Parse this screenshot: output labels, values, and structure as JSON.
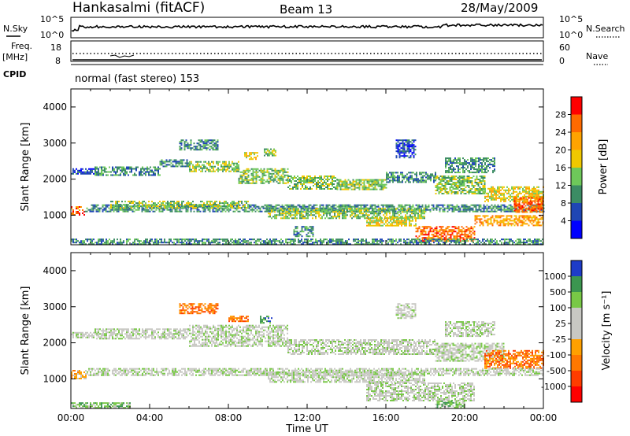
{
  "header": {
    "station": "Hankasalmi (fitACF)",
    "beam": "Beam 13",
    "date": "28/May/2009"
  },
  "noise_panel": {
    "left_label": "N.Sky",
    "right_label": "N.Search",
    "left_ticks": [
      "10^5",
      "10^0"
    ],
    "right_ticks": [
      "10^5",
      "10^0"
    ]
  },
  "freq_panel": {
    "left_label_line1": "Freq.",
    "left_label_line2": "[MHz]",
    "right_label": "Nave",
    "left_ticks": [
      "18",
      "8"
    ],
    "right_ticks": [
      "60",
      "0"
    ]
  },
  "cpid": {
    "label": "CPID",
    "mode": "normal (fast stereo) 153"
  },
  "chart_data": [
    {
      "type": "heatmap",
      "name": "power",
      "ylabel": "Slant Range [km]",
      "yticks": [
        "4000",
        "3000",
        "2000",
        "1000"
      ],
      "ylim": [
        180,
        4500
      ],
      "xlim": [
        0,
        24
      ],
      "colorbar_label": "Power [dB]",
      "colorbar_ticks": [
        "28",
        "24",
        "20",
        "16",
        "12",
        "8",
        "4"
      ],
      "colorbar_colors": [
        "#ff0000",
        "#ff6a00",
        "#ffa300",
        "#f0c800",
        "#6ec85a",
        "#3c8c64",
        "#1f46b4",
        "#0000ff"
      ],
      "bands": [
        {
          "t": [
            0.0,
            1.2
          ],
          "r": [
            2150,
            2300
          ],
          "level": 1
        },
        {
          "t": [
            1.2,
            4.5
          ],
          "r": [
            2100,
            2350
          ],
          "level": 2
        },
        {
          "t": [
            4.5,
            6.0
          ],
          "r": [
            2350,
            2550
          ],
          "level": 2
        },
        {
          "t": [
            6.0,
            8.5
          ],
          "r": [
            2200,
            2500
          ],
          "level": 3
        },
        {
          "t": [
            8.5,
            11.0
          ],
          "r": [
            1900,
            2300
          ],
          "level": 3
        },
        {
          "t": [
            11.0,
            13.5
          ],
          "r": [
            1750,
            2100
          ],
          "level": 3
        },
        {
          "t": [
            13.5,
            16.0
          ],
          "r": [
            1700,
            2000
          ],
          "level": 3
        },
        {
          "t": [
            16.0,
            18.5
          ],
          "r": [
            1900,
            2200
          ],
          "level": 2
        },
        {
          "t": [
            18.5,
            21.0
          ],
          "r": [
            1600,
            2100
          ],
          "level": 3
        },
        {
          "t": [
            21.0,
            24.0
          ],
          "r": [
            1400,
            1800
          ],
          "level": 4
        },
        {
          "t": [
            0.0,
            0.7
          ],
          "r": [
            1000,
            1250
          ],
          "level": 6
        },
        {
          "t": [
            0.7,
            24.0
          ],
          "r": [
            1100,
            1300
          ],
          "level": 2
        },
        {
          "t": [
            2.0,
            9.0
          ],
          "r": [
            1200,
            1400
          ],
          "level": 3
        },
        {
          "t": [
            10.0,
            18.0
          ],
          "r": [
            900,
            1200
          ],
          "level": 3
        },
        {
          "t": [
            15.0,
            17.5
          ],
          "r": [
            700,
            950
          ],
          "level": 4
        },
        {
          "t": [
            17.5,
            20.5
          ],
          "r": [
            300,
            700
          ],
          "level": 6
        },
        {
          "t": [
            20.5,
            24.0
          ],
          "r": [
            700,
            1000
          ],
          "level": 5
        },
        {
          "t": [
            22.5,
            24.0
          ],
          "r": [
            1100,
            1500
          ],
          "level": 6
        },
        {
          "t": [
            0.0,
            24.0
          ],
          "r": [
            190,
            350
          ],
          "level": 2
        },
        {
          "t": [
            11.3,
            12.3
          ],
          "r": [
            400,
            700
          ],
          "level": 2
        },
        {
          "t": [
            5.5,
            7.5
          ],
          "r": [
            2800,
            3100
          ],
          "level": 2
        },
        {
          "t": [
            8.8,
            9.5
          ],
          "r": [
            2550,
            2750
          ],
          "level": 4
        },
        {
          "t": [
            9.8,
            10.4
          ],
          "r": [
            2650,
            2850
          ],
          "level": 3
        },
        {
          "t": [
            16.5,
            17.5
          ],
          "r": [
            2600,
            3100
          ],
          "level": 1
        },
        {
          "t": [
            19.0,
            21.5
          ],
          "r": [
            2200,
            2600
          ],
          "level": 2
        }
      ]
    },
    {
      "type": "heatmap",
      "name": "velocity",
      "ylabel": "Slant Range [km]",
      "yticks": [
        "4000",
        "3000",
        "2000",
        "1000"
      ],
      "ylim": [
        180,
        4500
      ],
      "xlabel": "Time UT",
      "xticks": [
        "00:00",
        "04:00",
        "08:00",
        "12:00",
        "16:00",
        "20:00",
        "00:00"
      ],
      "xlim": [
        0,
        24
      ],
      "colorbar_label": "Velocity [m s⁻¹]",
      "colorbar_ticks": [
        "1000",
        "500",
        "100",
        "25",
        "-25",
        "-100",
        "-500",
        "-1000"
      ],
      "colorbar_colors": [
        "#1e3cc8",
        "#3c9650",
        "#78c846",
        "#c8c8c3",
        "#c8c8c3",
        "#ffa000",
        "#ff7800",
        "#ff3c00",
        "#ff0000"
      ],
      "bands": [
        {
          "t": [
            0.0,
            1.2
          ],
          "r": [
            2150,
            2300
          ],
          "level": 3
        },
        {
          "t": [
            1.2,
            6.0
          ],
          "r": [
            2100,
            2400
          ],
          "level": 3
        },
        {
          "t": [
            6.0,
            11.0
          ],
          "r": [
            1900,
            2500
          ],
          "level": 3
        },
        {
          "t": [
            11.0,
            18.5
          ],
          "r": [
            1700,
            2100
          ],
          "level": 3
        },
        {
          "t": [
            18.5,
            22.0
          ],
          "r": [
            1500,
            2000
          ],
          "level": 3
        },
        {
          "t": [
            21.0,
            24.0
          ],
          "r": [
            1300,
            1800
          ],
          "level": 6
        },
        {
          "t": [
            0.0,
            0.8
          ],
          "r": [
            1000,
            1250
          ],
          "level": 5
        },
        {
          "t": [
            0.8,
            24.0
          ],
          "r": [
            1100,
            1300
          ],
          "level": 3
        },
        {
          "t": [
            10.0,
            18.0
          ],
          "r": [
            900,
            1200
          ],
          "level": 3
        },
        {
          "t": [
            15.0,
            20.5
          ],
          "r": [
            400,
            900
          ],
          "level": 3
        },
        {
          "t": [
            0.0,
            3.0
          ],
          "r": [
            190,
            350
          ],
          "level": 2
        },
        {
          "t": [
            18.5,
            20.0
          ],
          "r": [
            190,
            400
          ],
          "level": 2
        },
        {
          "t": [
            5.5,
            7.5
          ],
          "r": [
            2800,
            3100
          ],
          "level": 6
        },
        {
          "t": [
            8.0,
            9.0
          ],
          "r": [
            2600,
            2750
          ],
          "level": 6
        },
        {
          "t": [
            9.6,
            10.2
          ],
          "r": [
            2550,
            2750
          ],
          "level": 1
        },
        {
          "t": [
            16.5,
            17.5
          ],
          "r": [
            2700,
            3100
          ],
          "level": 3
        },
        {
          "t": [
            19.0,
            21.5
          ],
          "r": [
            2200,
            2600
          ],
          "level": 3
        }
      ]
    }
  ]
}
